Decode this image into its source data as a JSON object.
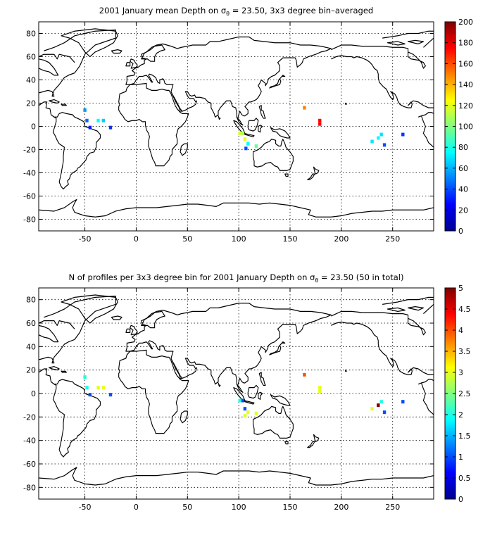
{
  "chart_data": [
    {
      "type": "heatmap",
      "title_prefix": "2001 January mean Depth on ",
      "title_symbol": "σ",
      "title_subscript": "θ",
      "title_suffix": " = 23.50, 3x3 degree bin–averaged",
      "xlim": [
        -95,
        290
      ],
      "ylim": [
        -90,
        90
      ],
      "xticks": [
        -50,
        0,
        50,
        100,
        150,
        200,
        250
      ],
      "yticks": [
        -80,
        -60,
        -40,
        -20,
        0,
        20,
        40,
        60,
        80
      ],
      "grid": true,
      "colormap": "jet",
      "clim": [
        0,
        200
      ],
      "colorbar_ticks": [
        0,
        20,
        40,
        60,
        80,
        100,
        120,
        140,
        160,
        180,
        200
      ],
      "cells": [
        {
          "lon": -50,
          "lat": 14,
          "value": 55
        },
        {
          "lon": -48,
          "lat": 5,
          "value": 45
        },
        {
          "lon": -45,
          "lat": -1,
          "value": 30
        },
        {
          "lon": -37,
          "lat": 5,
          "value": 75
        },
        {
          "lon": -32,
          "lat": 5,
          "value": 65
        },
        {
          "lon": -25,
          "lat": -1,
          "value": 35
        },
        {
          "lon": 101,
          "lat": -6,
          "value": 115
        },
        {
          "lon": 104,
          "lat": -6,
          "value": 110
        },
        {
          "lon": 106,
          "lat": -11,
          "value": 120
        },
        {
          "lon": 109,
          "lat": -15,
          "value": 75
        },
        {
          "lon": 107,
          "lat": -19,
          "value": 40
        },
        {
          "lon": 117,
          "lat": -17,
          "value": 95
        },
        {
          "lon": 164,
          "lat": 16,
          "value": 150
        },
        {
          "lon": 179,
          "lat": 5,
          "value": 175
        },
        {
          "lon": 179,
          "lat": 2,
          "value": 175
        },
        {
          "lon": 239,
          "lat": -7,
          "value": 70
        },
        {
          "lon": 236,
          "lat": -10,
          "value": 75
        },
        {
          "lon": 230,
          "lat": -13,
          "value": 70
        },
        {
          "lon": 242,
          "lat": -16,
          "value": 40
        },
        {
          "lon": 260,
          "lat": -7,
          "value": 35
        }
      ]
    },
    {
      "type": "heatmap",
      "title_prefix": "N of profiles per 3x3 degree bin for 2001 January Depth on ",
      "title_symbol": "σ",
      "title_subscript": "θ",
      "title_suffix": " = 23.50 (50 in total)",
      "xlim": [
        -95,
        290
      ],
      "ylim": [
        -90,
        90
      ],
      "xticks": [
        -50,
        0,
        50,
        100,
        150,
        200,
        250
      ],
      "yticks": [
        -80,
        -60,
        -40,
        -20,
        0,
        20,
        40,
        60,
        80
      ],
      "grid": true,
      "colormap": "jet",
      "clim": [
        0,
        5
      ],
      "colorbar_ticks": [
        "0",
        "0.5",
        "1",
        "1.5",
        "2",
        "2.5",
        "3",
        "3.5",
        "4",
        "4.5",
        "5"
      ],
      "cells": [
        {
          "lon": -50,
          "lat": 14,
          "value": 2
        },
        {
          "lon": -48,
          "lat": 5,
          "value": 2
        },
        {
          "lon": -45,
          "lat": -1,
          "value": 1
        },
        {
          "lon": -37,
          "lat": 5,
          "value": 3
        },
        {
          "lon": -32,
          "lat": 5,
          "value": 3
        },
        {
          "lon": -25,
          "lat": -1,
          "value": 1
        },
        {
          "lon": 101,
          "lat": -6,
          "value": 2
        },
        {
          "lon": 104,
          "lat": -6,
          "value": 1
        },
        {
          "lon": 106,
          "lat": -13,
          "value": 1
        },
        {
          "lon": 109,
          "lat": -16,
          "value": 3
        },
        {
          "lon": 106,
          "lat": -19,
          "value": 3
        },
        {
          "lon": 117,
          "lat": -17,
          "value": 3
        },
        {
          "lon": 164,
          "lat": 16,
          "value": 4
        },
        {
          "lon": 179,
          "lat": 5,
          "value": 3
        },
        {
          "lon": 179,
          "lat": 2,
          "value": 3
        },
        {
          "lon": 239,
          "lat": -7,
          "value": 2
        },
        {
          "lon": 236,
          "lat": -10,
          "value": 5
        },
        {
          "lon": 230,
          "lat": -13,
          "value": 3
        },
        {
          "lon": 242,
          "lat": -16,
          "value": 1
        },
        {
          "lon": 260,
          "lat": -7,
          "value": 1
        }
      ]
    }
  ]
}
